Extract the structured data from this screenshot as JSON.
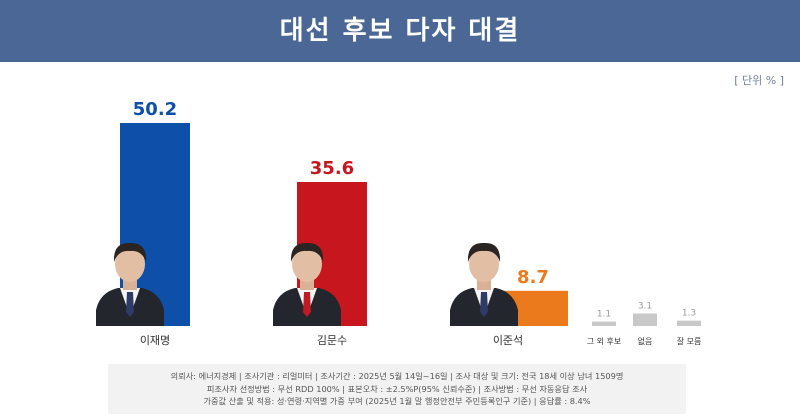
{
  "header": {
    "title": "대선 후보 다자 대결"
  },
  "unit_label": "[ 단위 % ]",
  "chart_data": {
    "type": "bar",
    "title": "대선 후보 다자 대결",
    "categories": [
      "이재명",
      "김문수",
      "이준석",
      "그 외 후보",
      "없음",
      "잘 모름"
    ],
    "values": [
      50.2,
      35.6,
      8.7,
      1.1,
      3.1,
      1.3
    ],
    "value_labels": [
      "50.2",
      "35.6",
      "8.7",
      "1.1",
      "3.1",
      "1.3"
    ],
    "show_category_labels": [
      true,
      true,
      true,
      true,
      true,
      true
    ],
    "colors": [
      "#0e4faa",
      "#c8161e",
      "#eb7a1d",
      "#c8c8c8",
      "#c8c8c8",
      "#c8c8c8"
    ],
    "label_colors": [
      "#0e4faa",
      "#c8161e",
      "#eb7a1d",
      "#9a9a9a",
      "#9a9a9a",
      "#9a9a9a"
    ],
    "candidate_photo": [
      true,
      true,
      true,
      false,
      false,
      false
    ],
    "ylim": [
      0,
      55
    ],
    "grid": false
  },
  "footer": {
    "lines": [
      "의뢰사: 에너지경제 | 조사기관 : 리얼미터 | 조사기간 : 2025년 5월 14일~16일 | 조사 대상 및 크기: 전국 18세 이상 남녀 1509명",
      "피조사자 선정방법 : 무선 RDD 100% | 표본오차 : ±2.5%P(95% 신뢰수준) | 조사방법 : 무선 자동응답 조사",
      "가중값 산출 및 적용: 성·연령·지역별 가중 부여 (2025년 1월 말 행정안전부 주민등록인구 기준) | 응답률 : 8.4%"
    ]
  }
}
